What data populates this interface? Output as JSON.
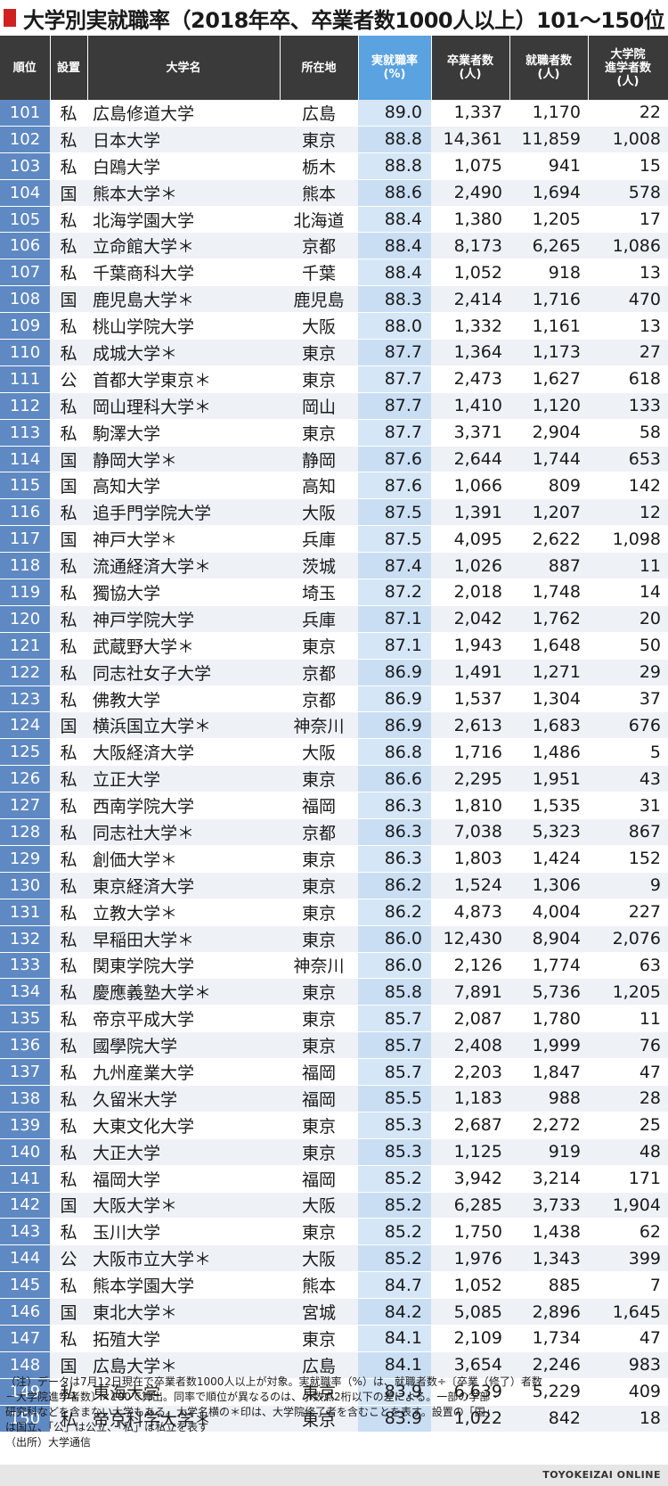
{
  "title": "大学別実就職率（2018年卒、卒業者数1000人以上）101～150位",
  "headers": {
    "rank": "順位",
    "type": "設置",
    "name": "大学名",
    "location": "所在地",
    "rate_line1": "実就職率",
    "rate_line2": "(%)",
    "graduates_line1": "卒業者数",
    "graduates_line2": "(人)",
    "employed_line1": "就職者数",
    "employed_line2": "(人)",
    "advanced_line1": "大学院",
    "advanced_line2": "進学者数",
    "advanced_line3": "(人)"
  },
  "rows": [
    {
      "rank": "101",
      "type": "私",
      "name": "広島修道大学",
      "location": "広島",
      "rate": "89.0",
      "graduates": "1,337",
      "employed": "1,170",
      "advanced": "22"
    },
    {
      "rank": "102",
      "type": "私",
      "name": "日本大学",
      "location": "東京",
      "rate": "88.8",
      "graduates": "14,361",
      "employed": "11,859",
      "advanced": "1,008"
    },
    {
      "rank": "103",
      "type": "私",
      "name": "白鴎大学",
      "location": "栃木",
      "rate": "88.8",
      "graduates": "1,075",
      "employed": "941",
      "advanced": "15"
    },
    {
      "rank": "104",
      "type": "国",
      "name": "熊本大学＊",
      "location": "熊本",
      "rate": "88.6",
      "graduates": "2,490",
      "employed": "1,694",
      "advanced": "578"
    },
    {
      "rank": "105",
      "type": "私",
      "name": "北海学園大学",
      "location": "北海道",
      "rate": "88.4",
      "graduates": "1,380",
      "employed": "1,205",
      "advanced": "17"
    },
    {
      "rank": "106",
      "type": "私",
      "name": "立命館大学＊",
      "location": "京都",
      "rate": "88.4",
      "graduates": "8,173",
      "employed": "6,265",
      "advanced": "1,086"
    },
    {
      "rank": "107",
      "type": "私",
      "name": "千葉商科大学",
      "location": "千葉",
      "rate": "88.4",
      "graduates": "1,052",
      "employed": "918",
      "advanced": "13"
    },
    {
      "rank": "108",
      "type": "国",
      "name": "鹿児島大学＊",
      "location": "鹿児島",
      "rate": "88.3",
      "graduates": "2,414",
      "employed": "1,716",
      "advanced": "470"
    },
    {
      "rank": "109",
      "type": "私",
      "name": "桃山学院大学",
      "location": "大阪",
      "rate": "88.0",
      "graduates": "1,332",
      "employed": "1,161",
      "advanced": "13"
    },
    {
      "rank": "110",
      "type": "私",
      "name": "成城大学＊",
      "location": "東京",
      "rate": "87.7",
      "graduates": "1,364",
      "employed": "1,173",
      "advanced": "27"
    },
    {
      "rank": "111",
      "type": "公",
      "name": "首都大学東京＊",
      "location": "東京",
      "rate": "87.7",
      "graduates": "2,473",
      "employed": "1,627",
      "advanced": "618"
    },
    {
      "rank": "112",
      "type": "私",
      "name": "岡山理科大学＊",
      "location": "岡山",
      "rate": "87.7",
      "graduates": "1,410",
      "employed": "1,120",
      "advanced": "133"
    },
    {
      "rank": "113",
      "type": "私",
      "name": "駒澤大学",
      "location": "東京",
      "rate": "87.7",
      "graduates": "3,371",
      "employed": "2,904",
      "advanced": "58"
    },
    {
      "rank": "114",
      "type": "国",
      "name": "静岡大学＊",
      "location": "静岡",
      "rate": "87.6",
      "graduates": "2,644",
      "employed": "1,744",
      "advanced": "653"
    },
    {
      "rank": "115",
      "type": "国",
      "name": "高知大学",
      "location": "高知",
      "rate": "87.6",
      "graduates": "1,066",
      "employed": "809",
      "advanced": "142"
    },
    {
      "rank": "116",
      "type": "私",
      "name": "追手門学院大学",
      "location": "大阪",
      "rate": "87.5",
      "graduates": "1,391",
      "employed": "1,207",
      "advanced": "12"
    },
    {
      "rank": "117",
      "type": "国",
      "name": "神戸大学＊",
      "location": "兵庫",
      "rate": "87.5",
      "graduates": "4,095",
      "employed": "2,622",
      "advanced": "1,098"
    },
    {
      "rank": "118",
      "type": "私",
      "name": "流通経済大学＊",
      "location": "茨城",
      "rate": "87.4",
      "graduates": "1,026",
      "employed": "887",
      "advanced": "11"
    },
    {
      "rank": "119",
      "type": "私",
      "name": "獨協大学",
      "location": "埼玉",
      "rate": "87.2",
      "graduates": "2,018",
      "employed": "1,748",
      "advanced": "14"
    },
    {
      "rank": "120",
      "type": "私",
      "name": "神戸学院大学",
      "location": "兵庫",
      "rate": "87.1",
      "graduates": "2,042",
      "employed": "1,762",
      "advanced": "20"
    },
    {
      "rank": "121",
      "type": "私",
      "name": "武蔵野大学＊",
      "location": "東京",
      "rate": "87.1",
      "graduates": "1,943",
      "employed": "1,648",
      "advanced": "50"
    },
    {
      "rank": "122",
      "type": "私",
      "name": "同志社女子大学",
      "location": "京都",
      "rate": "86.9",
      "graduates": "1,491",
      "employed": "1,271",
      "advanced": "29"
    },
    {
      "rank": "123",
      "type": "私",
      "name": "佛教大学",
      "location": "京都",
      "rate": "86.9",
      "graduates": "1,537",
      "employed": "1,304",
      "advanced": "37"
    },
    {
      "rank": "124",
      "type": "国",
      "name": "横浜国立大学＊",
      "location": "神奈川",
      "rate": "86.9",
      "graduates": "2,613",
      "employed": "1,683",
      "advanced": "676"
    },
    {
      "rank": "125",
      "type": "私",
      "name": "大阪経済大学",
      "location": "大阪",
      "rate": "86.8",
      "graduates": "1,716",
      "employed": "1,486",
      "advanced": "5"
    },
    {
      "rank": "126",
      "type": "私",
      "name": "立正大学",
      "location": "東京",
      "rate": "86.6",
      "graduates": "2,295",
      "employed": "1,951",
      "advanced": "43"
    },
    {
      "rank": "127",
      "type": "私",
      "name": "西南学院大学",
      "location": "福岡",
      "rate": "86.3",
      "graduates": "1,810",
      "employed": "1,535",
      "advanced": "31"
    },
    {
      "rank": "128",
      "type": "私",
      "name": "同志社大学＊",
      "location": "京都",
      "rate": "86.3",
      "graduates": "7,038",
      "employed": "5,323",
      "advanced": "867"
    },
    {
      "rank": "129",
      "type": "私",
      "name": "創価大学＊",
      "location": "東京",
      "rate": "86.3",
      "graduates": "1,803",
      "employed": "1,424",
      "advanced": "152"
    },
    {
      "rank": "130",
      "type": "私",
      "name": "東京経済大学",
      "location": "東京",
      "rate": "86.2",
      "graduates": "1,524",
      "employed": "1,306",
      "advanced": "9"
    },
    {
      "rank": "131",
      "type": "私",
      "name": "立教大学＊",
      "location": "東京",
      "rate": "86.2",
      "graduates": "4,873",
      "employed": "4,004",
      "advanced": "227"
    },
    {
      "rank": "132",
      "type": "私",
      "name": "早稲田大学＊",
      "location": "東京",
      "rate": "86.0",
      "graduates": "12,430",
      "employed": "8,904",
      "advanced": "2,076"
    },
    {
      "rank": "133",
      "type": "私",
      "name": "関東学院大学",
      "location": "神奈川",
      "rate": "86.0",
      "graduates": "2,126",
      "employed": "1,774",
      "advanced": "63"
    },
    {
      "rank": "134",
      "type": "私",
      "name": "慶應義塾大学＊",
      "location": "東京",
      "rate": "85.8",
      "graduates": "7,891",
      "employed": "5,736",
      "advanced": "1,205"
    },
    {
      "rank": "135",
      "type": "私",
      "name": "帝京平成大学",
      "location": "東京",
      "rate": "85.7",
      "graduates": "2,087",
      "employed": "1,780",
      "advanced": "11"
    },
    {
      "rank": "136",
      "type": "私",
      "name": "國學院大学",
      "location": "東京",
      "rate": "85.7",
      "graduates": "2,408",
      "employed": "1,999",
      "advanced": "76"
    },
    {
      "rank": "137",
      "type": "私",
      "name": "九州産業大学",
      "location": "福岡",
      "rate": "85.7",
      "graduates": "2,203",
      "employed": "1,847",
      "advanced": "47"
    },
    {
      "rank": "138",
      "type": "私",
      "name": "久留米大学",
      "location": "福岡",
      "rate": "85.5",
      "graduates": "1,183",
      "employed": "988",
      "advanced": "28"
    },
    {
      "rank": "139",
      "type": "私",
      "name": "大東文化大学",
      "location": "東京",
      "rate": "85.3",
      "graduates": "2,687",
      "employed": "2,272",
      "advanced": "25"
    },
    {
      "rank": "140",
      "type": "私",
      "name": "大正大学",
      "location": "東京",
      "rate": "85.3",
      "graduates": "1,125",
      "employed": "919",
      "advanced": "48"
    },
    {
      "rank": "141",
      "type": "私",
      "name": "福岡大学",
      "location": "福岡",
      "rate": "85.2",
      "graduates": "3,942",
      "employed": "3,214",
      "advanced": "171"
    },
    {
      "rank": "142",
      "type": "国",
      "name": "大阪大学＊",
      "location": "大阪",
      "rate": "85.2",
      "graduates": "6,285",
      "employed": "3,733",
      "advanced": "1,904"
    },
    {
      "rank": "143",
      "type": "私",
      "name": "玉川大学",
      "location": "東京",
      "rate": "85.2",
      "graduates": "1,750",
      "employed": "1,438",
      "advanced": "62"
    },
    {
      "rank": "144",
      "type": "公",
      "name": "大阪市立大学＊",
      "location": "大阪",
      "rate": "85.2",
      "graduates": "1,976",
      "employed": "1,343",
      "advanced": "399"
    },
    {
      "rank": "145",
      "type": "私",
      "name": "熊本学園大学",
      "location": "熊本",
      "rate": "84.7",
      "graduates": "1,052",
      "employed": "885",
      "advanced": "7"
    },
    {
      "rank": "146",
      "type": "国",
      "name": "東北大学＊",
      "location": "宮城",
      "rate": "84.2",
      "graduates": "5,085",
      "employed": "2,896",
      "advanced": "1,645"
    },
    {
      "rank": "147",
      "type": "私",
      "name": "拓殖大学",
      "location": "東京",
      "rate": "84.1",
      "graduates": "2,109",
      "employed": "1,734",
      "advanced": "47"
    },
    {
      "rank": "148",
      "type": "国",
      "name": "広島大学＊",
      "location": "広島",
      "rate": "84.1",
      "graduates": "3,654",
      "employed": "2,246",
      "advanced": "983"
    },
    {
      "rank": "149",
      "type": "私",
      "name": "東海大学",
      "location": "東京",
      "rate": "83.9",
      "graduates": "6,639",
      "employed": "5,229",
      "advanced": "409"
    },
    {
      "rank": "150",
      "type": "私",
      "name": "帝京科学大学＊",
      "location": "東京",
      "rate": "83.9",
      "graduates": "1,022",
      "employed": "842",
      "advanced": "18"
    }
  ],
  "notes": {
    "line1": "（注）データは7月12日現在で卒業者数1000人以上が対象。実就職率（%）は、就職者数÷〔卒業（修了）者数",
    "line2": "－大学院進学者数〕×100で算出。同率で順位が異なるのは、小数点2桁以下の差による。一部の学部・",
    "line3": "研究科などを含まない大学もある。大学名横の＊印は、大学院修了者を含むことを表す。設置の「国」",
    "line4": "は国立、「公」は公立、「私」は私立を表す",
    "source": "（出所）大学通信"
  },
  "footer": {
    "brand": "TOYOKEIZAI ONLINE"
  },
  "colors": {
    "title_mark": "#d0201f",
    "header_bg": "#3a3a3a",
    "rate_header_bg": "#5aa2e0",
    "rank_cell_bg": "#5f89c2",
    "rate_cell_bg": "#d5e6f7"
  }
}
